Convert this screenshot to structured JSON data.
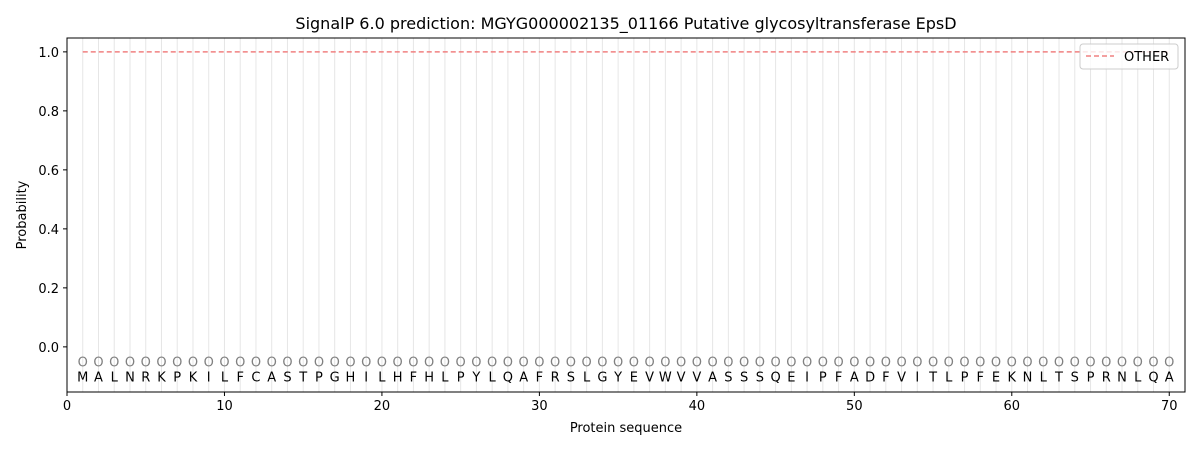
{
  "chart_data": {
    "type": "line",
    "title": "SignalP 6.0 prediction: MGYG000002135_01166 Putative glycosyltransferase EpsD",
    "xlabel": "Protein sequence",
    "ylabel": "Probability",
    "xlim": [
      0,
      71
    ],
    "ylim": [
      -0.153,
      1.047
    ],
    "xticks": [
      0,
      10,
      20,
      30,
      40,
      50,
      60,
      70
    ],
    "yticks": [
      0.0,
      0.2,
      0.4,
      0.6,
      0.8,
      1.0
    ],
    "ytick_labels": [
      "0.0",
      "0.2",
      "0.4",
      "0.6",
      "0.8",
      "1.0"
    ],
    "grid": "vertical lines at each residue",
    "legend_position": "top-right",
    "sequence": [
      "M",
      "A",
      "L",
      "N",
      "R",
      "K",
      "P",
      "K",
      "I",
      "L",
      "F",
      "C",
      "A",
      "S",
      "T",
      "P",
      "G",
      "H",
      "I",
      "L",
      "H",
      "F",
      "H",
      "L",
      "P",
      "Y",
      "L",
      "Q",
      "A",
      "F",
      "R",
      "S",
      "L",
      "G",
      "Y",
      "E",
      "V",
      "W",
      "V",
      "V",
      "A",
      "S",
      "S",
      "S",
      "Q",
      "E",
      "I",
      "P",
      "F",
      "A",
      "D",
      "F",
      "V",
      "I",
      "T",
      "L",
      "P",
      "F",
      "E",
      "K",
      "N",
      "L",
      "T",
      "S",
      "P",
      "R",
      "N",
      "L",
      "Q",
      "A"
    ],
    "predicted_label": "O",
    "series": [
      {
        "name": "OTHER",
        "color": "#f08080",
        "style": "dashed",
        "x_range": [
          1,
          70
        ],
        "value": 1.0
      }
    ]
  }
}
